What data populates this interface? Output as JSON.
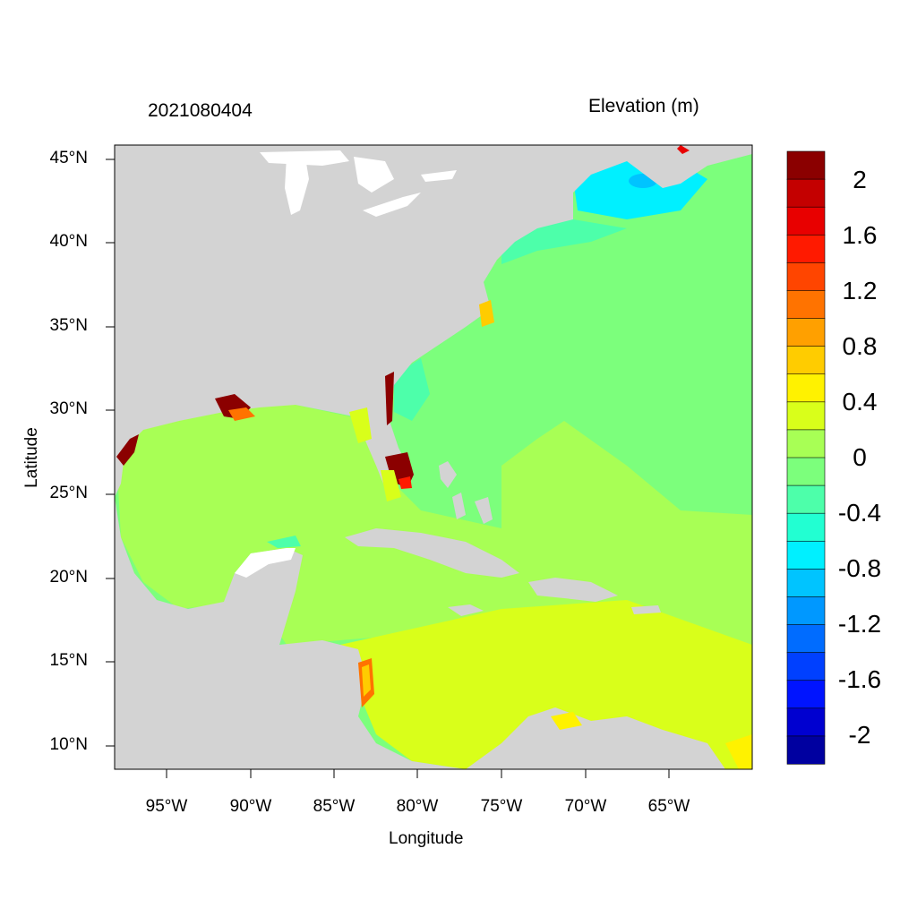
{
  "header": {
    "date": "2021080404",
    "variable": "Elevation (m)"
  },
  "axes": {
    "xlabel": "Longitude",
    "ylabel": "Latitude",
    "x_ticks": [
      "95°W",
      "90°W",
      "85°W",
      "80°W",
      "75°W",
      "70°W",
      "65°W"
    ],
    "y_ticks": [
      "45°N",
      "40°N",
      "35°N",
      "30°N",
      "25°N",
      "20°N",
      "15°N",
      "10°N"
    ],
    "lon_range": [
      -98,
      -60.3
    ],
    "lat_range": [
      8.5,
      45.8
    ]
  },
  "colorbar": {
    "labels": [
      "2",
      "1.6",
      "1.2",
      "0.8",
      "0.4",
      "0",
      "-0.4",
      "-0.8",
      "-1.2",
      "-1.6",
      "-2"
    ],
    "colors": [
      "#8b0000",
      "#c40000",
      "#e80000",
      "#ff1a00",
      "#ff4500",
      "#ff7300",
      "#ffa000",
      "#ffcc00",
      "#fff200",
      "#d9ff1a",
      "#a8ff55",
      "#7cff7c",
      "#4dffaa",
      "#22ffd2",
      "#00f0ff",
      "#00c4ff",
      "#0098ff",
      "#006cff",
      "#0040ff",
      "#0014ff",
      "#0000d0",
      "#0000a0"
    ]
  },
  "map_colors": {
    "land": "#d3d3d3",
    "atlantic": "#7cff7c",
    "gulf": "#a8ff55",
    "caribbean": "#d9ff1a",
    "gulf_of_maine": "#00f0ff",
    "surge": "#8b0000"
  }
}
